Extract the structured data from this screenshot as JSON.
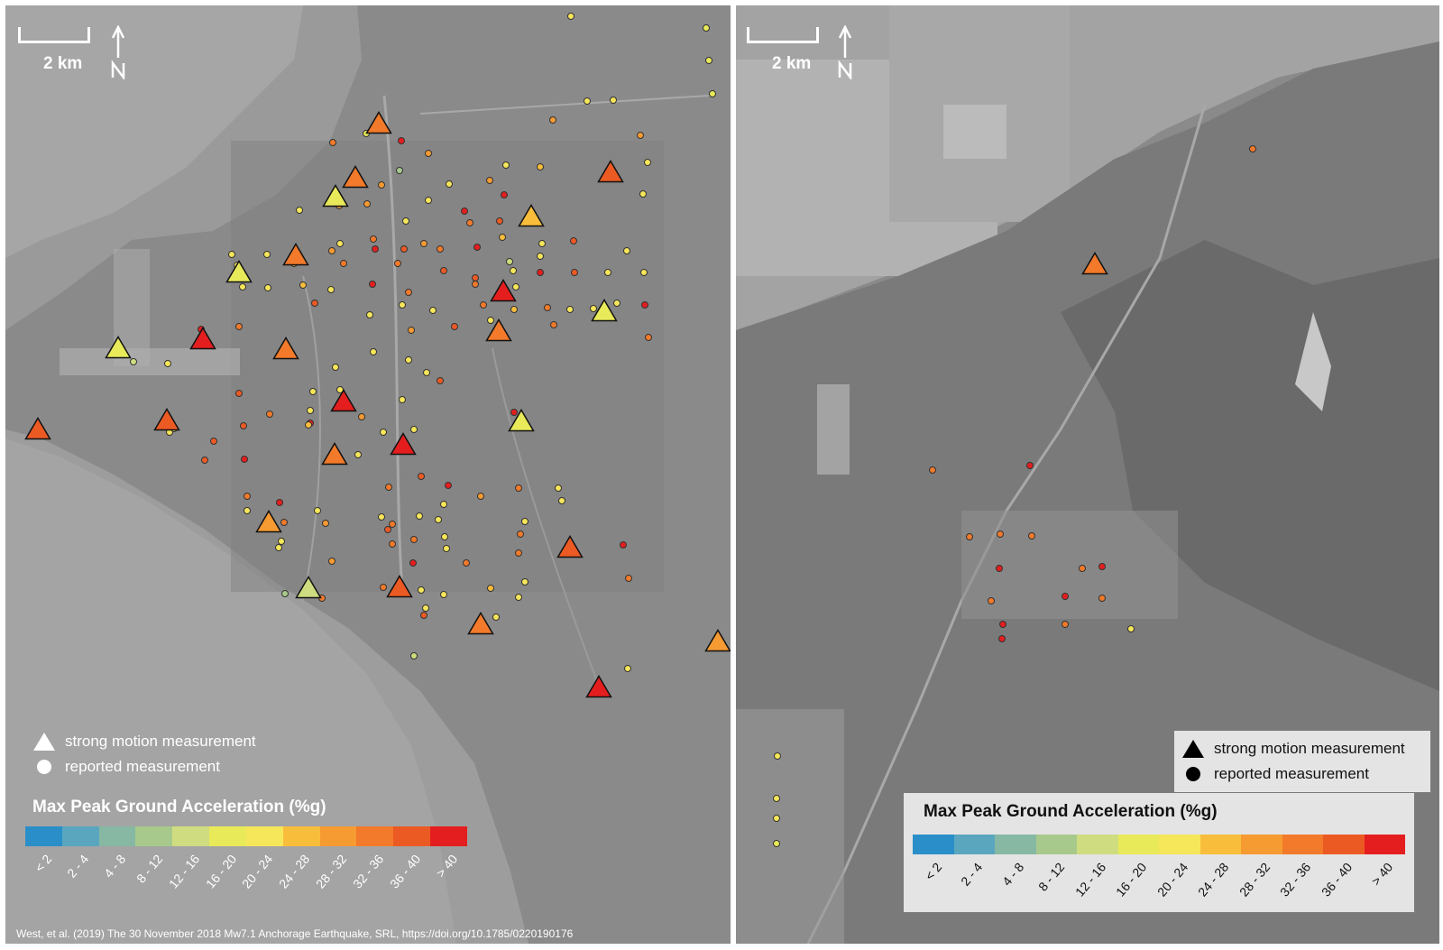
{
  "scale_label": "2 km",
  "legend": {
    "triangle_label": "strong motion measurement",
    "circle_label": "reported measurement",
    "title": "Max Peak Ground Acceleration (%g)",
    "classes": [
      {
        "label": "< 2",
        "color": "#2a8fc8"
      },
      {
        "label": "2 - 4",
        "color": "#5aa6bf"
      },
      {
        "label": "4 - 8",
        "color": "#86b8a4"
      },
      {
        "label": "8 - 12",
        "color": "#a8c98c"
      },
      {
        "label": "12 - 16",
        "color": "#cfdc80"
      },
      {
        "label": "16 - 20",
        "color": "#e9ea5a"
      },
      {
        "label": "20 - 24",
        "color": "#f6e65a"
      },
      {
        "label": "24 - 28",
        "color": "#f9bd3c"
      },
      {
        "label": "28 - 32",
        "color": "#f69a32"
      },
      {
        "label": "32 - 36",
        "color": "#f27a2a"
      },
      {
        "label": "36 - 40",
        "color": "#ec5a24"
      },
      {
        "label": "> 40",
        "color": "#e41e1e"
      }
    ]
  },
  "citation": "West, et al. (2019) The 30 November 2018 Mw7.1 Anchorage Earthquake, SRL, https://doi.org/10.1785/0220190176",
  "maps": [
    {
      "name": "left",
      "triangles": [
        [
          0.515,
          0.125,
          9
        ],
        [
          0.483,
          0.183,
          9
        ],
        [
          0.455,
          0.203,
          5
        ],
        [
          0.835,
          0.177,
          10
        ],
        [
          0.725,
          0.224,
          7
        ],
        [
          0.4,
          0.265,
          9
        ],
        [
          0.322,
          0.284,
          5
        ],
        [
          0.687,
          0.304,
          11
        ],
        [
          0.826,
          0.325,
          5
        ],
        [
          0.68,
          0.346,
          9
        ],
        [
          0.272,
          0.355,
          11
        ],
        [
          0.155,
          0.364,
          5
        ],
        [
          0.387,
          0.365,
          9
        ],
        [
          0.467,
          0.421,
          11
        ],
        [
          0.045,
          0.451,
          10
        ],
        [
          0.223,
          0.441,
          10
        ],
        [
          0.712,
          0.442,
          5
        ],
        [
          0.549,
          0.467,
          11
        ],
        [
          0.454,
          0.478,
          9
        ],
        [
          0.363,
          0.55,
          8
        ],
        [
          0.778,
          0.577,
          10
        ],
        [
          0.418,
          0.62,
          4
        ],
        [
          0.543,
          0.619,
          10
        ],
        [
          0.656,
          0.659,
          9
        ],
        [
          0.983,
          0.677,
          8
        ],
        [
          0.818,
          0.726,
          11
        ]
      ],
      "circles": [
        [
          0.78,
          0.012,
          6
        ],
        [
          0.966,
          0.024,
          5
        ],
        [
          0.97,
          0.059,
          5
        ],
        [
          0.975,
          0.094,
          5
        ],
        [
          0.838,
          0.101,
          6
        ],
        [
          0.802,
          0.102,
          6
        ],
        [
          0.755,
          0.122,
          8
        ],
        [
          0.497,
          0.137,
          5
        ],
        [
          0.546,
          0.144,
          11
        ],
        [
          0.452,
          0.146,
          9
        ],
        [
          0.583,
          0.158,
          8
        ],
        [
          0.876,
          0.138,
          8
        ],
        [
          0.543,
          0.176,
          3
        ],
        [
          0.69,
          0.17,
          6
        ],
        [
          0.737,
          0.172,
          7
        ],
        [
          0.886,
          0.167,
          6
        ],
        [
          0.837,
          0.184,
          8
        ],
        [
          0.668,
          0.187,
          8
        ],
        [
          0.519,
          0.191,
          8
        ],
        [
          0.612,
          0.19,
          6
        ],
        [
          0.583,
          0.208,
          6
        ],
        [
          0.688,
          0.202,
          11
        ],
        [
          0.879,
          0.201,
          6
        ],
        [
          0.499,
          0.212,
          8
        ],
        [
          0.633,
          0.219,
          11
        ],
        [
          0.46,
          0.213,
          8
        ],
        [
          0.405,
          0.218,
          6
        ],
        [
          0.64,
          0.232,
          9
        ],
        [
          0.552,
          0.23,
          6
        ],
        [
          0.682,
          0.23,
          10
        ],
        [
          0.685,
          0.247,
          7
        ],
        [
          0.508,
          0.249,
          9
        ],
        [
          0.462,
          0.254,
          6
        ],
        [
          0.577,
          0.254,
          8
        ],
        [
          0.784,
          0.251,
          10
        ],
        [
          0.74,
          0.254,
          6
        ],
        [
          0.51,
          0.26,
          11
        ],
        [
          0.599,
          0.26,
          9
        ],
        [
          0.312,
          0.265,
          6
        ],
        [
          0.361,
          0.265,
          6
        ],
        [
          0.45,
          0.262,
          8
        ],
        [
          0.55,
          0.26,
          10
        ],
        [
          0.65,
          0.258,
          11
        ],
        [
          0.738,
          0.267,
          6
        ],
        [
          0.857,
          0.262,
          6
        ],
        [
          0.32,
          0.277,
          6
        ],
        [
          0.398,
          0.275,
          7
        ],
        [
          0.467,
          0.275,
          9
        ],
        [
          0.541,
          0.275,
          9
        ],
        [
          0.695,
          0.273,
          4
        ],
        [
          0.604,
          0.283,
          10
        ],
        [
          0.7,
          0.283,
          6
        ],
        [
          0.785,
          0.285,
          10
        ],
        [
          0.88,
          0.285,
          6
        ],
        [
          0.648,
          0.29,
          10
        ],
        [
          0.737,
          0.285,
          11
        ],
        [
          0.831,
          0.285,
          6
        ],
        [
          0.327,
          0.3,
          6
        ],
        [
          0.362,
          0.301,
          6
        ],
        [
          0.411,
          0.298,
          7
        ],
        [
          0.449,
          0.303,
          6
        ],
        [
          0.506,
          0.297,
          11
        ],
        [
          0.556,
          0.306,
          9
        ],
        [
          0.648,
          0.297,
          9
        ],
        [
          0.704,
          0.3,
          6
        ],
        [
          0.882,
          0.319,
          11
        ],
        [
          0.426,
          0.317,
          10
        ],
        [
          0.502,
          0.33,
          6
        ],
        [
          0.547,
          0.319,
          6
        ],
        [
          0.589,
          0.325,
          6
        ],
        [
          0.659,
          0.319,
          9
        ],
        [
          0.702,
          0.324,
          7
        ],
        [
          0.748,
          0.322,
          9
        ],
        [
          0.779,
          0.324,
          6
        ],
        [
          0.811,
          0.323,
          6
        ],
        [
          0.843,
          0.317,
          6
        ],
        [
          0.27,
          0.345,
          11
        ],
        [
          0.322,
          0.342,
          9
        ],
        [
          0.56,
          0.346,
          8
        ],
        [
          0.62,
          0.342,
          10
        ],
        [
          0.669,
          0.336,
          6
        ],
        [
          0.756,
          0.34,
          9
        ],
        [
          0.887,
          0.354,
          9
        ],
        [
          0.508,
          0.369,
          6
        ],
        [
          0.556,
          0.378,
          6
        ],
        [
          0.581,
          0.391,
          6
        ],
        [
          0.455,
          0.386,
          6
        ],
        [
          0.176,
          0.38,
          4
        ],
        [
          0.224,
          0.382,
          6
        ],
        [
          0.599,
          0.4,
          10
        ],
        [
          0.322,
          0.413,
          10
        ],
        [
          0.424,
          0.412,
          6
        ],
        [
          0.462,
          0.41,
          6
        ],
        [
          0.547,
          0.42,
          6
        ],
        [
          0.364,
          0.436,
          9
        ],
        [
          0.42,
          0.432,
          6
        ],
        [
          0.491,
          0.438,
          8
        ],
        [
          0.23,
          0.45,
          6
        ],
        [
          0.42,
          0.445,
          11
        ],
        [
          0.702,
          0.434,
          11
        ],
        [
          0.328,
          0.448,
          10
        ],
        [
          0.418,
          0.447,
          7
        ],
        [
          0.226,
          0.455,
          6
        ],
        [
          0.233,
          0.451,
          6
        ],
        [
          0.521,
          0.455,
          6
        ],
        [
          0.564,
          0.452,
          6
        ],
        [
          0.275,
          0.485,
          10
        ],
        [
          0.329,
          0.484,
          11
        ],
        [
          0.486,
          0.479,
          6
        ],
        [
          0.287,
          0.464,
          10
        ],
        [
          0.574,
          0.502,
          10
        ],
        [
          0.611,
          0.512,
          11
        ],
        [
          0.528,
          0.513,
          9
        ],
        [
          0.763,
          0.514,
          6
        ],
        [
          0.605,
          0.532,
          6
        ],
        [
          0.571,
          0.544,
          6
        ],
        [
          0.333,
          0.523,
          9
        ],
        [
          0.378,
          0.53,
          11
        ],
        [
          0.43,
          0.538,
          6
        ],
        [
          0.519,
          0.545,
          6
        ],
        [
          0.597,
          0.548,
          6
        ],
        [
          0.656,
          0.523,
          8
        ],
        [
          0.708,
          0.514,
          9
        ],
        [
          0.767,
          0.528,
          6
        ],
        [
          0.333,
          0.538,
          6
        ],
        [
          0.384,
          0.551,
          9
        ],
        [
          0.442,
          0.552,
          8
        ],
        [
          0.527,
          0.559,
          10
        ],
        [
          0.606,
          0.566,
          6
        ],
        [
          0.716,
          0.55,
          6
        ],
        [
          0.381,
          0.571,
          6
        ],
        [
          0.533,
          0.574,
          9
        ],
        [
          0.563,
          0.569,
          9
        ],
        [
          0.377,
          0.578,
          6
        ],
        [
          0.71,
          0.563,
          9
        ],
        [
          0.608,
          0.579,
          6
        ],
        [
          0.45,
          0.592,
          8
        ],
        [
          0.562,
          0.594,
          11
        ],
        [
          0.635,
          0.594,
          9
        ],
        [
          0.708,
          0.584,
          9
        ],
        [
          0.852,
          0.575,
          11
        ],
        [
          0.717,
          0.614,
          6
        ],
        [
          0.86,
          0.611,
          9
        ],
        [
          0.521,
          0.62,
          9
        ],
        [
          0.573,
          0.623,
          6
        ],
        [
          0.604,
          0.628,
          6
        ],
        [
          0.669,
          0.621,
          7
        ],
        [
          0.579,
          0.642,
          6
        ],
        [
          0.386,
          0.627,
          3
        ],
        [
          0.436,
          0.632,
          9
        ],
        [
          0.708,
          0.631,
          6
        ],
        [
          0.577,
          0.65,
          10
        ],
        [
          0.677,
          0.652,
          6
        ],
        [
          0.563,
          0.693,
          4
        ],
        [
          0.858,
          0.707,
          6
        ],
        [
          0.533,
          0.553,
          9
        ]
      ]
    },
    {
      "name": "right",
      "triangles": [
        [
          0.51,
          0.275,
          9
        ]
      ],
      "circles": [
        [
          0.734,
          0.153,
          9
        ],
        [
          0.28,
          0.495,
          9
        ],
        [
          0.418,
          0.49,
          11
        ],
        [
          0.332,
          0.566,
          9
        ],
        [
          0.375,
          0.563,
          9
        ],
        [
          0.42,
          0.565,
          9
        ],
        [
          0.374,
          0.6,
          11
        ],
        [
          0.492,
          0.6,
          9
        ],
        [
          0.52,
          0.598,
          11
        ],
        [
          0.468,
          0.63,
          11
        ],
        [
          0.52,
          0.632,
          9
        ],
        [
          0.363,
          0.635,
          9
        ],
        [
          0.468,
          0.66,
          9
        ],
        [
          0.38,
          0.66,
          11
        ],
        [
          0.562,
          0.664,
          6
        ],
        [
          0.378,
          0.675,
          11
        ],
        [
          0.059,
          0.8,
          6
        ],
        [
          0.058,
          0.845,
          6
        ],
        [
          0.058,
          0.866,
          6
        ],
        [
          0.058,
          0.893,
          5
        ]
      ]
    }
  ]
}
